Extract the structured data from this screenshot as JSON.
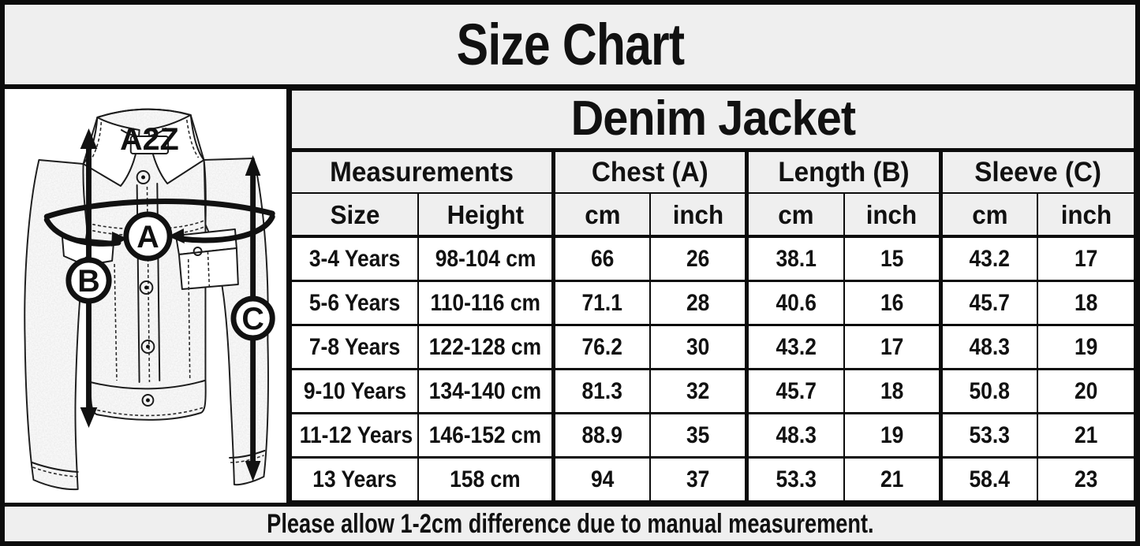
{
  "window": {
    "title": "Size Chart"
  },
  "jacket_diagram": {
    "brand_label": "A2Z",
    "measure_labels": {
      "chest": "A",
      "length": "B",
      "sleeve": "C"
    }
  },
  "size_table": {
    "title": "Denim Jacket",
    "group_headers": [
      {
        "label": "Measurements",
        "span": 2
      },
      {
        "label": "Chest (A)",
        "span": 2
      },
      {
        "label": "Length (B)",
        "span": 2
      },
      {
        "label": "Sleeve (C)",
        "span": 2
      }
    ],
    "column_headers": [
      "Size",
      "Height",
      "cm",
      "inch",
      "cm",
      "inch",
      "cm",
      "inch"
    ],
    "rows": [
      [
        "3-4 Years",
        "98-104 cm",
        "66",
        "26",
        "38.1",
        "15",
        "43.2",
        "17"
      ],
      [
        "5-6 Years",
        "110-116 cm",
        "71.1",
        "28",
        "40.6",
        "16",
        "45.7",
        "18"
      ],
      [
        "7-8 Years",
        "122-128 cm",
        "76.2",
        "30",
        "43.2",
        "17",
        "48.3",
        "19"
      ],
      [
        "9-10 Years",
        "134-140 cm",
        "81.3",
        "32",
        "45.7",
        "18",
        "50.8",
        "20"
      ],
      [
        "11-12 Years",
        "146-152 cm",
        "88.9",
        "35",
        "48.3",
        "19",
        "53.3",
        "21"
      ],
      [
        "13 Years",
        "158 cm",
        "94",
        "37",
        "53.3",
        "21",
        "58.4",
        "23"
      ]
    ]
  },
  "footer": {
    "note": "Please allow 1-2cm difference due to manual measurement."
  },
  "colors": {
    "band_bg": "#efefef",
    "cell_bg": "#ffffff",
    "border": "#0c0c0c",
    "text": "#111111"
  }
}
